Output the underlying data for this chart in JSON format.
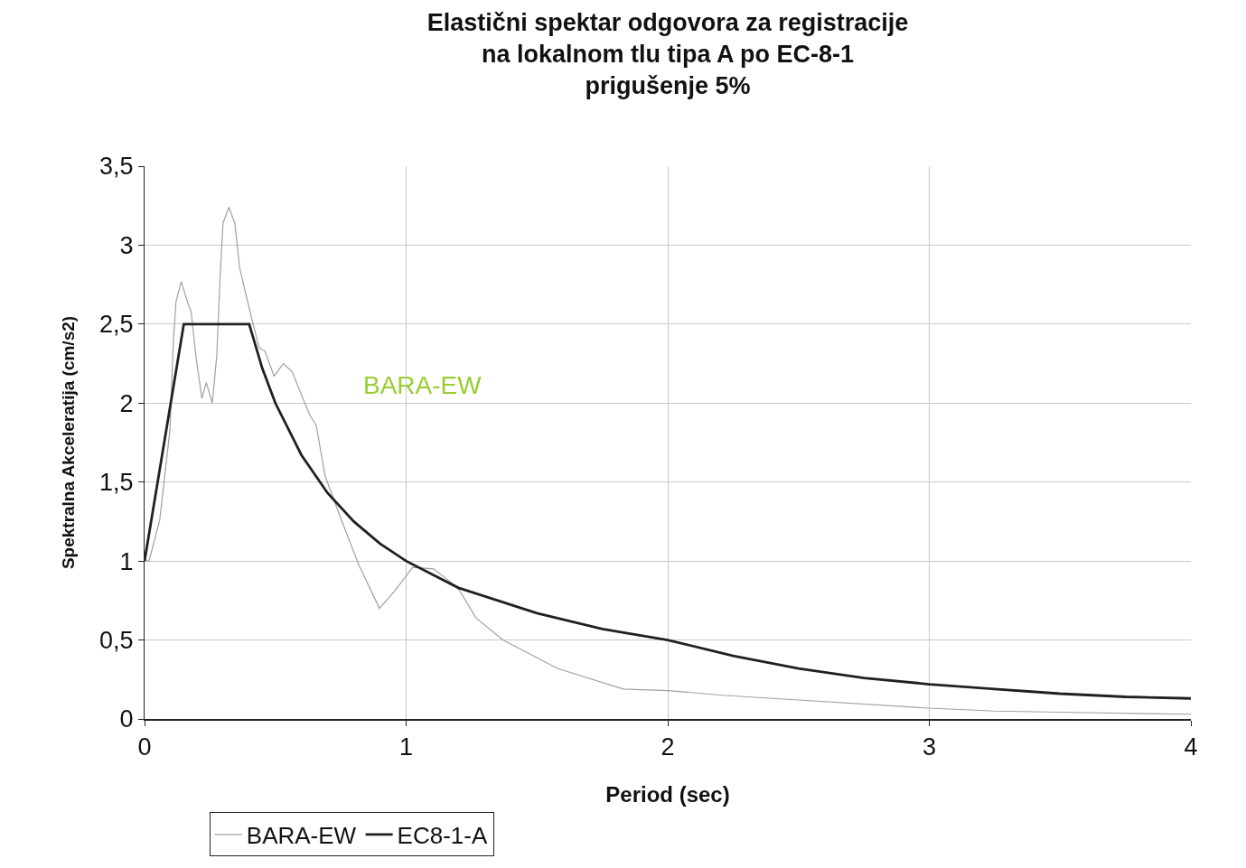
{
  "chart_data": {
    "type": "line",
    "title": "Elastični spektar odgovora za registracije\nna lokalnom tlu tipa A po EC-8-1\nprigušenje 5%",
    "xlabel": "Period (sec)",
    "ylabel": "Spektralna Akceleratija (cm/s2)",
    "series": [
      {
        "name": "BARA-EW",
        "color": "#a0a0a0",
        "x": [
          0,
          0.017,
          0.058,
          0.097,
          0.11,
          0.12,
          0.14,
          0.166,
          0.178,
          0.196,
          0.219,
          0.236,
          0.259,
          0.276,
          0.288,
          0.3,
          0.322,
          0.345,
          0.363,
          0.39,
          0.415,
          0.438,
          0.46,
          0.495,
          0.53,
          0.564,
          0.6,
          0.633,
          0.656,
          0.69,
          0.748,
          0.818,
          0.898,
          0.956,
          1.025,
          1.105,
          1.198,
          1.267,
          1.37,
          1.578,
          1.83,
          2.0,
          2.21,
          2.5,
          2.98,
          3.25,
          3.6,
          4.0
        ],
        "values": [
          1.0,
          1.0,
          1.26,
          1.83,
          2.39,
          2.64,
          2.77,
          2.63,
          2.58,
          2.3,
          2.03,
          2.13,
          2.0,
          2.3,
          2.77,
          3.14,
          3.24,
          3.14,
          2.86,
          2.67,
          2.5,
          2.35,
          2.33,
          2.17,
          2.25,
          2.2,
          2.05,
          1.92,
          1.86,
          1.54,
          1.28,
          0.98,
          0.7,
          0.81,
          0.96,
          0.95,
          0.83,
          0.64,
          0.5,
          0.32,
          0.19,
          0.18,
          0.15,
          0.12,
          0.07,
          0.05,
          0.04,
          0.03
        ]
      },
      {
        "name": "EC8-1-A",
        "color": "#202020",
        "x": [
          0,
          0.15,
          0.4,
          0.45,
          0.5,
          0.6,
          0.7,
          0.8,
          0.9,
          1.0,
          1.2,
          1.5,
          1.75,
          2.0,
          2.25,
          2.5,
          2.75,
          3.0,
          3.25,
          3.5,
          3.75,
          4.0
        ],
        "values": [
          1.0,
          2.5,
          2.5,
          2.22,
          2.0,
          1.67,
          1.43,
          1.25,
          1.11,
          1.0,
          0.83,
          0.67,
          0.57,
          0.5,
          0.4,
          0.32,
          0.26,
          0.22,
          0.19,
          0.16,
          0.14,
          0.13
        ]
      }
    ],
    "annotations": [
      "BARA-EW"
    ],
    "xlim": [
      0,
      4
    ],
    "xticks": [
      0,
      1,
      2,
      3,
      4
    ],
    "ylim": [
      0,
      3.5
    ],
    "yticks": [
      0,
      {
        "value": 0.5,
        "label": "0,5"
      },
      1,
      {
        "value": 1.5,
        "label": "1,5"
      },
      2,
      {
        "value": 2.5,
        "label": "2,5"
      },
      3,
      {
        "value": 3.5,
        "label": "3,5"
      }
    ],
    "grid": true,
    "legend": "bottom left",
    "marker": "none",
    "line_style": "solid"
  }
}
